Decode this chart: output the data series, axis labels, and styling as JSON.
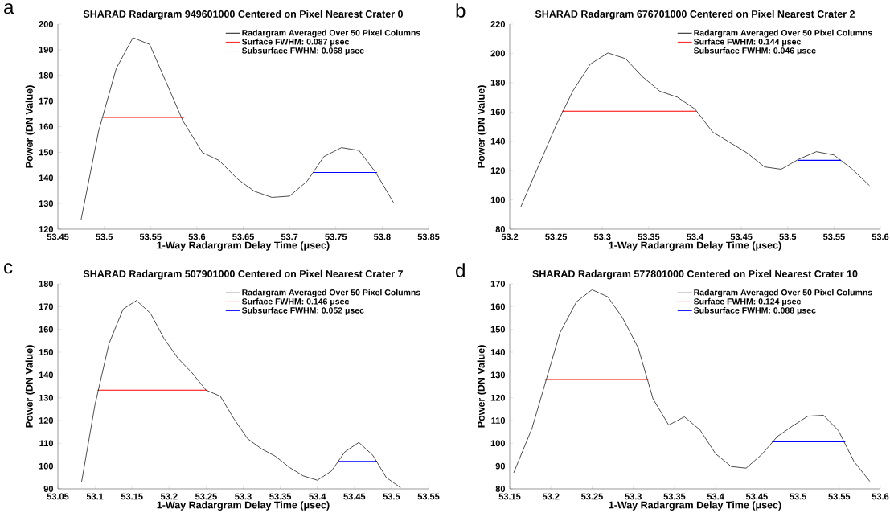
{
  "chart_data": [
    {
      "type": "line",
      "title": "SHARAD Radargram 949601000 Centered on Pixel Nearest Crater 0",
      "xlabel": "1-Way Radargram Delay Time (μsec)",
      "ylabel": "Power (DN Value)",
      "annotations": [
        "a"
      ],
      "legend": "top right",
      "xlim": [
        53.45,
        53.85
      ],
      "xticks": [
        53.45,
        53.5,
        53.55,
        53.6,
        53.65,
        53.7,
        53.75,
        53.8,
        53.85
      ],
      "ylim": [
        120,
        200
      ],
      "yticks": [
        120,
        130,
        140,
        150,
        160,
        170,
        180,
        190,
        200
      ],
      "series": [
        {
          "name": "Radargram Averaged Over 50 Pixel Columns",
          "color": "#000000",
          "x": [
            53.475,
            53.494,
            53.513,
            53.531,
            53.549,
            53.568,
            53.585,
            53.606,
            53.624,
            53.644,
            53.662,
            53.681,
            53.7,
            53.719,
            53.737,
            53.756,
            53.775,
            53.793,
            53.812
          ],
          "values": [
            123.6,
            158.3,
            182.7,
            194.7,
            192.1,
            176.4,
            162.2,
            149.9,
            146.8,
            139.5,
            134.8,
            132.4,
            132.9,
            138.7,
            148.3,
            151.8,
            150.7,
            142.1,
            130.5
          ]
        },
        {
          "name": "Surface FWHM: 0.087 μsec",
          "color": "#ff0000",
          "x": [
            53.499,
            53.586
          ],
          "values": [
            163.6,
            163.6
          ]
        },
        {
          "name": "Subsurface FWHM: 0.068 μsec",
          "color": "#0000ff",
          "x": [
            53.726,
            53.794
          ],
          "values": [
            142.1,
            142.1
          ]
        }
      ]
    },
    {
      "type": "line",
      "title": "SHARAD Radargram 676701000 Centered on Pixel Nearest Crater 2",
      "xlabel": "1-Way Radargram Delay Time (μsec)",
      "ylabel": "Power (DN Value)",
      "annotations": [
        "b"
      ],
      "legend": "top right",
      "xlim": [
        53.2,
        53.6
      ],
      "xticks": [
        53.2,
        53.25,
        53.3,
        53.35,
        53.4,
        53.45,
        53.5,
        53.55,
        53.6
      ],
      "ylim": [
        80,
        220
      ],
      "yticks": [
        80,
        100,
        120,
        140,
        160,
        180,
        200,
        220
      ],
      "series": [
        {
          "name": "Radargram Averaged Over 50 Pixel Columns",
          "color": "#000000",
          "x": [
            53.212,
            53.25,
            53.268,
            53.287,
            53.306,
            53.325,
            53.343,
            53.362,
            53.381,
            53.4,
            53.419,
            53.437,
            53.456,
            53.475,
            53.493,
            53.512,
            53.531,
            53.55,
            53.569,
            53.588
          ],
          "values": [
            95.3,
            150.8,
            174.2,
            192.7,
            200.3,
            196.4,
            184.2,
            174.2,
            170.1,
            162,
            146.3,
            139.4,
            132.1,
            122.5,
            120.9,
            127.8,
            132.9,
            130.6,
            121.3,
            109.9
          ]
        },
        {
          "name": "Surface FWHM: 0.144 μsec",
          "color": "#ff0000",
          "x": [
            53.257,
            53.401
          ],
          "values": [
            160.6,
            160.6
          ]
        },
        {
          "name": "Subsurface FWHM: 0.046 μsec",
          "color": "#0000ff",
          "x": [
            53.511,
            53.557
          ],
          "values": [
            127,
            127
          ]
        }
      ]
    },
    {
      "type": "line",
      "title": "SHARAD Radargram 507901000 Centered on Pixel Nearest Crater 7",
      "xlabel": "1-Way Radargram Delay Time (μsec)",
      "ylabel": "Power (DN Value)",
      "annotations": [
        "c"
      ],
      "legend": "top right",
      "xlim": [
        53.05,
        53.55
      ],
      "xticks": [
        53.05,
        53.1,
        53.15,
        53.2,
        53.25,
        53.3,
        53.35,
        53.4,
        53.45,
        53.5,
        53.55
      ],
      "ylim": [
        90,
        180
      ],
      "yticks": [
        90,
        100,
        110,
        120,
        130,
        140,
        150,
        160,
        170,
        180
      ],
      "series": [
        {
          "name": "Radargram Averaged Over 50 Pixel Columns",
          "color": "#000000",
          "x": [
            53.082,
            53.1,
            53.119,
            53.138,
            53.156,
            53.175,
            53.193,
            53.212,
            53.231,
            53.25,
            53.269,
            53.288,
            53.306,
            53.325,
            53.343,
            53.363,
            53.381,
            53.4,
            53.419,
            53.437,
            53.456,
            53.475,
            53.493,
            53.512
          ],
          "values": [
            93.1,
            126.8,
            153.8,
            168.9,
            172.7,
            167,
            156.1,
            147.3,
            140.9,
            133.3,
            130.7,
            120.5,
            112,
            107.5,
            104.4,
            99.3,
            95.7,
            93.8,
            97.8,
            106.2,
            110.4,
            104.7,
            95,
            90.6
          ]
        },
        {
          "name": "Surface FWHM: 0.146 μsec",
          "color": "#ff0000",
          "x": [
            53.104,
            53.251
          ],
          "values": [
            133.3,
            133.3
          ]
        },
        {
          "name": "Subsurface FWHM: 0.052 μsec",
          "color": "#0000ff",
          "x": [
            53.429,
            53.48
          ],
          "values": [
            102.1,
            102.1
          ]
        }
      ]
    },
    {
      "type": "line",
      "title": "SHARAD Radargram 577801000 Centered on Pixel Nearest Crater 10",
      "xlabel": "1-Way Radargram Delay Time (μsec)",
      "ylabel": "Power (DN Value)",
      "annotations": [
        "d"
      ],
      "legend": "top right",
      "xlim": [
        53.15,
        53.6
      ],
      "xticks": [
        53.15,
        53.2,
        53.25,
        53.3,
        53.35,
        53.4,
        53.45,
        53.5,
        53.55,
        53.6
      ],
      "ylim": [
        80,
        170
      ],
      "yticks": [
        80,
        90,
        100,
        110,
        120,
        130,
        140,
        150,
        160,
        170
      ],
      "series": [
        {
          "name": "Radargram Averaged Over 50 Pixel Columns",
          "color": "#000000",
          "x": [
            53.155,
            53.177,
            53.211,
            53.231,
            53.25,
            53.269,
            53.287,
            53.306,
            53.324,
            53.343,
            53.362,
            53.381,
            53.4,
            53.419,
            53.437,
            53.456,
            53.475,
            53.493,
            53.512,
            53.531,
            53.549,
            53.568,
            53.587
          ],
          "values": [
            87.2,
            106.5,
            148.5,
            162.1,
            167.4,
            164.3,
            155.1,
            141.9,
            119.5,
            108,
            111.6,
            105.9,
            95.4,
            89.8,
            89.1,
            95.1,
            103,
            107.5,
            111.9,
            112.3,
            105.6,
            92,
            83.4
          ]
        },
        {
          "name": "Surface FWHM: 0.124 μsec",
          "color": "#ff0000",
          "x": [
            53.193,
            53.318
          ],
          "values": [
            128,
            128
          ]
        },
        {
          "name": "Subsurface FWHM: 0.088 μsec",
          "color": "#0000ff",
          "x": [
            53.469,
            53.557
          ],
          "values": [
            100.7,
            100.7
          ]
        }
      ]
    }
  ]
}
